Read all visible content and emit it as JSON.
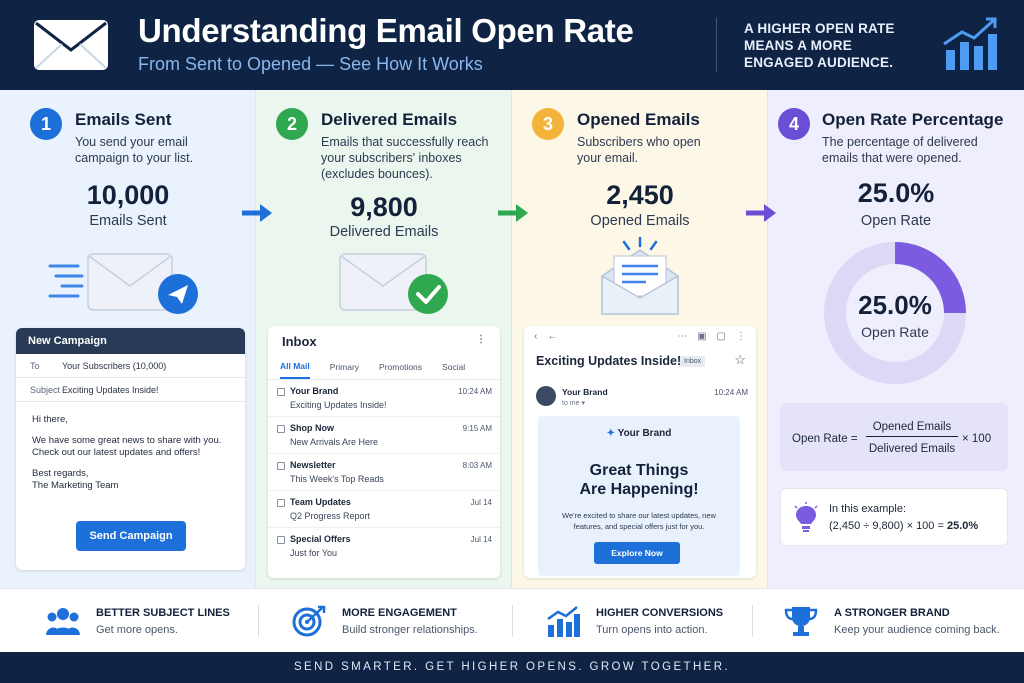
{
  "header": {
    "title": "Understanding Email Open Rate",
    "subtitle": "From Sent to Opened — See How It Works",
    "tagline": "A HIGHER OPEN RATE MEANS A MORE ENGAGED AUDIENCE.",
    "icons": [
      "envelope-icon",
      "growth-chart-icon"
    ]
  },
  "steps": [
    {
      "number": "1",
      "title": "Emails Sent",
      "description": "You send your email campaign to your list.",
      "value": "10,000",
      "value_label": "Emails Sent",
      "color": "#1d6fd9"
    },
    {
      "number": "2",
      "title": "Delivered Emails",
      "description": "Emails that successfully reach your subscribers' inboxes (excludes bounces).",
      "value": "9,800",
      "value_label": "Delivered Emails",
      "color": "#2fa84f"
    },
    {
      "number": "3",
      "title": "Opened Emails",
      "description": "Subscribers who open your email.",
      "value": "2,450",
      "value_label": "Opened Emails",
      "color": "#f2b43a"
    },
    {
      "number": "4",
      "title": "Open Rate Percentage",
      "description": "The percentage of delivered emails that were opened.",
      "value": "25.0%",
      "value_label": "Open Rate",
      "color": "#6a4fd6"
    }
  ],
  "campaign": {
    "header": "New Campaign",
    "to_label": "To",
    "to_value": "Your Subscribers (10,000)",
    "subject_label": "Subject",
    "subject_value": "Exciting Updates Inside!",
    "greeting": "Hi there,",
    "body": "We have some great news to share with you. Check out our latest updates and offers!",
    "signoff": "Best regards,",
    "signature": "The Marketing Team",
    "send_button": "Send Campaign"
  },
  "inbox": {
    "title": "Inbox",
    "tabs": [
      "All Mail",
      "Primary",
      "Promotions",
      "Social"
    ],
    "active_tab": "All Mail",
    "emails": [
      {
        "from": "Your Brand",
        "subject": "Exciting Updates Inside!",
        "time": "10:24 AM"
      },
      {
        "from": "Shop Now",
        "subject": "New Arrivals Are Here",
        "time": "9:15 AM"
      },
      {
        "from": "Newsletter",
        "subject": "This Week's Top Reads",
        "time": "8:03 AM"
      },
      {
        "from": "Team Updates",
        "subject": "Q2 Progress Report",
        "time": "Jul 14"
      },
      {
        "from": "Special Offers",
        "subject": "Just for You",
        "time": "Jul 14"
      }
    ]
  },
  "opened_email": {
    "subject": "Exciting Updates Inside!",
    "badge": "Inbox",
    "sender": "Your Brand",
    "to": "to me ▾",
    "time": "10:24 AM",
    "brand": "Your Brand",
    "headline_line1": "Great Things",
    "headline_line2": "Are Happening!",
    "body": "We're excited to share our latest updates, new features, and special offers just for you.",
    "button": "Explore Now"
  },
  "open_rate_chart": {
    "value": "25.0%",
    "label": "Open Rate",
    "fraction": 0.25,
    "fill_color": "#7b5ce0",
    "track_color": "#dcd8f6"
  },
  "formula": {
    "lhs": "Open Rate =",
    "numerator": "Opened Emails",
    "denominator": "Delivered Emails",
    "multiplier": "× 100"
  },
  "example": {
    "label": "In this example:",
    "calc": "(2,450 ÷ 9,800) × 100 = ",
    "result": "25.0%"
  },
  "benefits": [
    {
      "title": "BETTER SUBJECT LINES",
      "desc": "Get more opens.",
      "icon": "people-icon"
    },
    {
      "title": "MORE ENGAGEMENT",
      "desc": "Build stronger relationships.",
      "icon": "target-icon"
    },
    {
      "title": "HIGHER CONVERSIONS",
      "desc": "Turn opens into action.",
      "icon": "bar-chart-icon"
    },
    {
      "title": "A STRONGER BRAND",
      "desc": "Keep your audience coming back.",
      "icon": "trophy-icon"
    }
  ],
  "footer": "SEND SMARTER. GET HIGHER OPENS. GROW TOGETHER."
}
